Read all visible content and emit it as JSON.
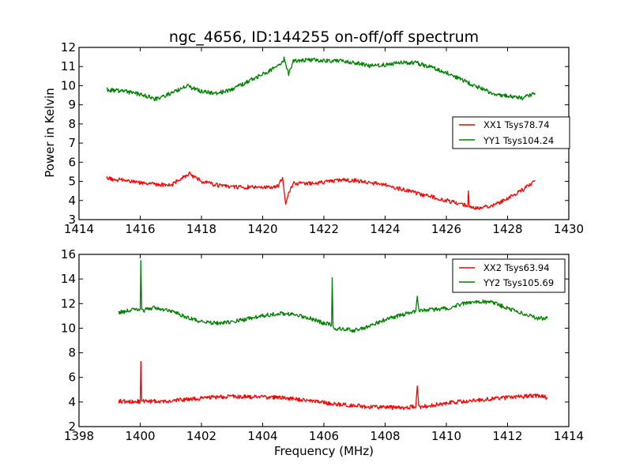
{
  "chart_data": [
    {
      "type": "line",
      "title": "ngc_4656, ID:144255 on-off/off spectrum",
      "xlabel": "",
      "ylabel": "Power in Kelvin",
      "xlim": [
        1414,
        1430
      ],
      "ylim": [
        3,
        12
      ],
      "xticks": [
        "1414",
        "1416",
        "1418",
        "1420",
        "1422",
        "1424",
        "1426",
        "1428",
        "1430"
      ],
      "yticks": [
        "3",
        "4",
        "5",
        "6",
        "7",
        "8",
        "9",
        "10",
        "11",
        "12"
      ],
      "legend_position": "center-right",
      "series": [
        {
          "name": "XX1 Tsys78.74",
          "color": "#ff0000",
          "points": [
            [
              1414.9,
              5.15
            ],
            [
              1415.5,
              5.05
            ],
            [
              1416.0,
              4.95
            ],
            [
              1416.5,
              4.85
            ],
            [
              1417.0,
              4.8
            ],
            [
              1417.3,
              5.1
            ],
            [
              1417.6,
              5.4
            ],
            [
              1418.0,
              5.0
            ],
            [
              1418.5,
              4.8
            ],
            [
              1419.0,
              4.7
            ],
            [
              1419.5,
              4.7
            ],
            [
              1420.0,
              4.7
            ],
            [
              1420.5,
              4.75
            ],
            [
              1420.65,
              5.2
            ],
            [
              1420.75,
              3.8
            ],
            [
              1420.85,
              4.4
            ],
            [
              1421.0,
              4.9
            ],
            [
              1421.5,
              4.9
            ],
            [
              1422.0,
              4.95
            ],
            [
              1422.5,
              5.05
            ],
            [
              1423.0,
              5.05
            ],
            [
              1423.5,
              4.95
            ],
            [
              1424.0,
              4.8
            ],
            [
              1424.5,
              4.6
            ],
            [
              1425.0,
              4.4
            ],
            [
              1425.5,
              4.2
            ],
            [
              1426.0,
              4.0
            ],
            [
              1426.5,
              3.8
            ],
            [
              1426.7,
              3.7
            ],
            [
              1426.72,
              4.5
            ],
            [
              1426.75,
              3.7
            ],
            [
              1427.0,
              3.6
            ],
            [
              1427.5,
              3.7
            ],
            [
              1428.0,
              4.1
            ],
            [
              1428.5,
              4.55
            ],
            [
              1428.9,
              5.05
            ]
          ]
        },
        {
          "name": "YY1 Tsys104.24",
          "color": "#008000",
          "points": [
            [
              1414.9,
              9.8
            ],
            [
              1415.5,
              9.7
            ],
            [
              1416.0,
              9.55
            ],
            [
              1416.5,
              9.3
            ],
            [
              1417.0,
              9.6
            ],
            [
              1417.5,
              10.0
            ],
            [
              1418.0,
              9.7
            ],
            [
              1418.5,
              9.6
            ],
            [
              1419.0,
              9.8
            ],
            [
              1419.5,
              10.2
            ],
            [
              1420.0,
              10.6
            ],
            [
              1420.5,
              11.0
            ],
            [
              1420.7,
              11.4
            ],
            [
              1420.85,
              10.6
            ],
            [
              1421.0,
              11.3
            ],
            [
              1421.5,
              11.35
            ],
            [
              1422.0,
              11.3
            ],
            [
              1422.5,
              11.3
            ],
            [
              1423.0,
              11.2
            ],
            [
              1423.5,
              11.05
            ],
            [
              1424.0,
              11.1
            ],
            [
              1424.5,
              11.2
            ],
            [
              1425.0,
              11.2
            ],
            [
              1425.5,
              10.95
            ],
            [
              1426.0,
              10.7
            ],
            [
              1426.5,
              10.3
            ],
            [
              1427.0,
              9.95
            ],
            [
              1427.5,
              9.6
            ],
            [
              1428.0,
              9.45
            ],
            [
              1428.5,
              9.35
            ],
            [
              1428.9,
              9.6
            ]
          ]
        }
      ]
    },
    {
      "type": "line",
      "title": "",
      "xlabel": "Frequency (MHz)",
      "ylabel": "",
      "xlim": [
        1398,
        1414
      ],
      "ylim": [
        2,
        16
      ],
      "xticks": [
        "1398",
        "1400",
        "1402",
        "1404",
        "1406",
        "1408",
        "1410",
        "1412",
        "1414"
      ],
      "yticks": [
        "2",
        "4",
        "6",
        "8",
        "10",
        "12",
        "14",
        "16"
      ],
      "legend_position": "upper-right",
      "series": [
        {
          "name": "XX2 Tsys63.94",
          "color": "#ff0000",
          "points": [
            [
              1399.3,
              4.05
            ],
            [
              1399.8,
              4.05
            ],
            [
              1400.0,
              4.05
            ],
            [
              1400.02,
              7.3
            ],
            [
              1400.05,
              4.05
            ],
            [
              1400.5,
              4.05
            ],
            [
              1401.0,
              4.1
            ],
            [
              1401.5,
              4.2
            ],
            [
              1402.0,
              4.3
            ],
            [
              1402.5,
              4.4
            ],
            [
              1403.0,
              4.45
            ],
            [
              1403.5,
              4.45
            ],
            [
              1404.0,
              4.4
            ],
            [
              1404.5,
              4.35
            ],
            [
              1405.0,
              4.25
            ],
            [
              1405.5,
              4.1
            ],
            [
              1406.0,
              3.95
            ],
            [
              1406.5,
              3.8
            ],
            [
              1407.0,
              3.7
            ],
            [
              1407.5,
              3.6
            ],
            [
              1408.0,
              3.55
            ],
            [
              1408.5,
              3.55
            ],
            [
              1409.0,
              3.6
            ],
            [
              1409.05,
              5.3
            ],
            [
              1409.1,
              3.6
            ],
            [
              1409.5,
              3.7
            ],
            [
              1410.0,
              3.9
            ],
            [
              1410.5,
              4.05
            ],
            [
              1411.0,
              4.15
            ],
            [
              1411.5,
              4.25
            ],
            [
              1412.0,
              4.35
            ],
            [
              1412.5,
              4.45
            ],
            [
              1413.0,
              4.5
            ],
            [
              1413.3,
              4.35
            ]
          ]
        },
        {
          "name": "YY2 Tsys105.69",
          "color": "#008000",
          "points": [
            [
              1399.3,
              11.3
            ],
            [
              1399.8,
              11.5
            ],
            [
              1400.0,
              11.6
            ],
            [
              1400.02,
              15.5
            ],
            [
              1400.05,
              11.4
            ],
            [
              1400.5,
              11.7
            ],
            [
              1401.0,
              11.4
            ],
            [
              1401.5,
              10.9
            ],
            [
              1402.0,
              10.5
            ],
            [
              1402.5,
              10.4
            ],
            [
              1403.0,
              10.5
            ],
            [
              1403.5,
              10.75
            ],
            [
              1404.0,
              11.0
            ],
            [
              1404.5,
              11.2
            ],
            [
              1405.0,
              11.1
            ],
            [
              1405.5,
              10.85
            ],
            [
              1406.0,
              10.4
            ],
            [
              1406.25,
              10.3
            ],
            [
              1406.27,
              14.1
            ],
            [
              1406.3,
              10.0
            ],
            [
              1406.8,
              9.9
            ],
            [
              1407.0,
              9.8
            ],
            [
              1407.5,
              10.2
            ],
            [
              1408.0,
              10.7
            ],
            [
              1408.5,
              11.05
            ],
            [
              1409.0,
              11.4
            ],
            [
              1409.05,
              12.6
            ],
            [
              1409.1,
              11.4
            ],
            [
              1409.5,
              11.5
            ],
            [
              1410.0,
              11.6
            ],
            [
              1410.5,
              11.95
            ],
            [
              1411.0,
              12.2
            ],
            [
              1411.5,
              12.1
            ],
            [
              1412.0,
              11.6
            ],
            [
              1412.5,
              11.2
            ],
            [
              1413.0,
              10.8
            ],
            [
              1413.3,
              10.8
            ]
          ]
        }
      ]
    }
  ]
}
